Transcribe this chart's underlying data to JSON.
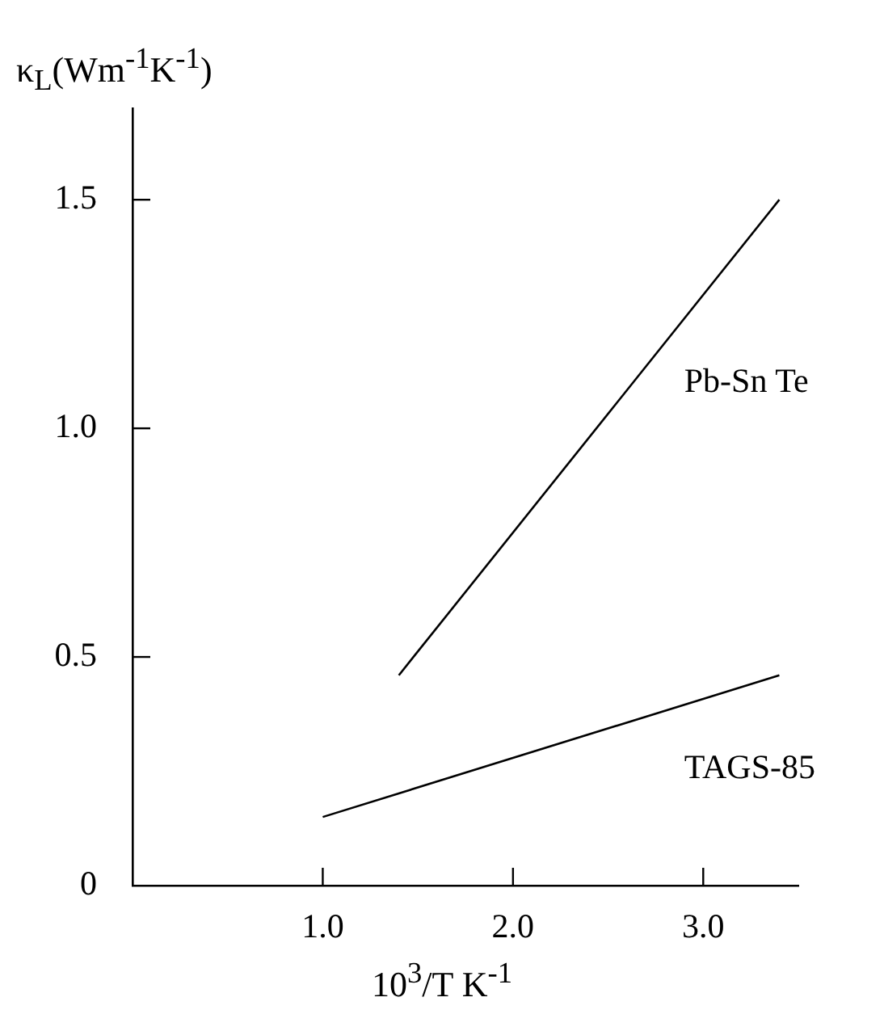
{
  "chart_data": {
    "type": "line",
    "ylabel": "κ$_{L}$(Wm$^{-1}$K$^{-1}$)",
    "xlabel": "10$^{3}$/T  K$^{-1}$",
    "xlim": [
      0,
      3.5
    ],
    "xticks": [
      {
        "value": 1,
        "label": "1.0"
      },
      {
        "value": 2,
        "label": "2.0"
      },
      {
        "value": 3,
        "label": "3.0"
      }
    ],
    "ylim": [
      0,
      1.7
    ],
    "yticks": [
      0,
      {
        "value": 0.5,
        "label": "0.5"
      },
      {
        "value": 1,
        "label": "1.0"
      },
      {
        "value": 1.5,
        "label": "1.5"
      }
    ],
    "marker": "none",
    "line_style": "solid",
    "series": [
      {
        "name": "Pb-Sn Te",
        "color": "#000000",
        "x": [
          1.4,
          3.4
        ],
        "values": [
          0.46,
          1.5
        ]
      },
      {
        "name": "TAGS-85",
        "color": "#000000",
        "x": [
          1.0,
          3.4
        ],
        "values": [
          0.15,
          0.46
        ]
      }
    ]
  }
}
